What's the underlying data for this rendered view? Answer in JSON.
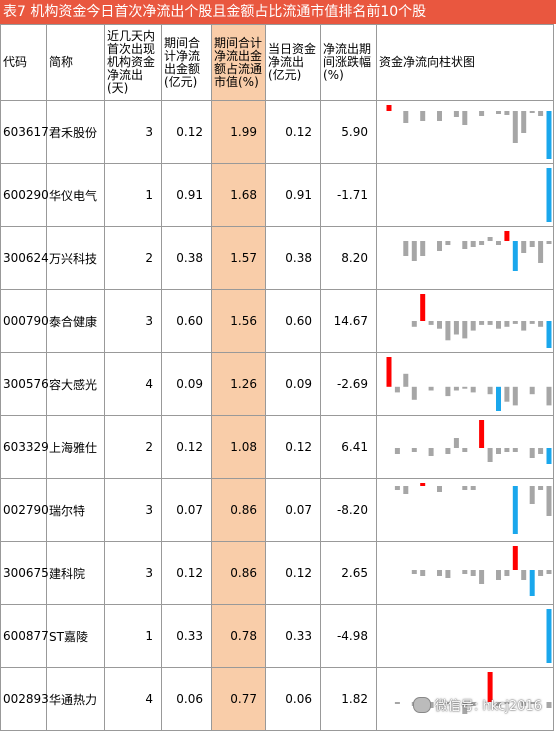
{
  "title": "表7 机构资金今日首次净流出个股且金额占比流通市值排名前10个股",
  "headers": {
    "code": "代码",
    "name": "简称",
    "days": "近几天内首次出现机构资金净流出(天)",
    "period_outflow": "期间合计净流出金额(亿元)",
    "period_ratio": "期间合计净流出金额占流通市值(%)",
    "day_outflow": "当日资金净流出(亿元)",
    "change": "净流出期间涨跌幅(%)",
    "chart": "资金净流向柱状图"
  },
  "colors": {
    "title_bg": "#e9573f",
    "highlight": "#f9cda9",
    "bar_red": "#ff0000",
    "bar_blue": "#1aa7ec",
    "bar_gray": "#a6a6a6"
  },
  "rows": [
    {
      "code": "603617",
      "name": "君禾股份",
      "days": "3",
      "period_outflow": "0.12",
      "period_ratio": "1.99",
      "day_outflow": "0.12",
      "change": "5.90",
      "bars": [
        6,
        0,
        -12,
        0,
        -10,
        0,
        -10,
        0,
        -6,
        -14,
        0,
        -5,
        0,
        -3,
        -4,
        -32,
        -22,
        -2,
        -5,
        -48
      ]
    },
    {
      "code": "600290",
      "name": "华仪电气",
      "days": "1",
      "period_outflow": "0.91",
      "period_ratio": "1.68",
      "day_outflow": "0.91",
      "change": "-1.71",
      "bars": [
        0,
        0,
        0,
        0,
        0,
        0,
        0,
        0,
        0,
        0,
        0,
        0,
        0,
        0,
        0,
        0,
        0,
        0,
        0,
        -55
      ]
    },
    {
      "code": "300624",
      "name": "万兴科技",
      "days": "2",
      "period_outflow": "0.38",
      "period_ratio": "1.57",
      "day_outflow": "0.38",
      "change": "8.20",
      "bars": [
        0,
        0,
        -15,
        -20,
        -15,
        0,
        -10,
        -4,
        0,
        -8,
        -6,
        -4,
        4,
        -4,
        10,
        -30,
        -12,
        -6,
        -22,
        -3
      ]
    },
    {
      "code": "000790",
      "name": "泰合健康",
      "days": "3",
      "period_outflow": "0.60",
      "period_ratio": "1.56",
      "day_outflow": "0.60",
      "change": "14.67",
      "bars": [
        0,
        0,
        0,
        -6,
        28,
        -4,
        -8,
        -20,
        -14,
        -18,
        -10,
        -4,
        -4,
        -8,
        -6,
        -3,
        -10,
        -3,
        -6,
        -28
      ]
    },
    {
      "code": "300576",
      "name": "容大感光",
      "days": "4",
      "period_outflow": "0.09",
      "period_ratio": "1.26",
      "day_outflow": "0.09",
      "change": "-2.69",
      "bars": [
        32,
        -6,
        14,
        -14,
        0,
        -4,
        0,
        -10,
        -4,
        -2,
        -6,
        0,
        -8,
        -26,
        -16,
        -20,
        0,
        -8,
        0,
        -20
      ]
    },
    {
      "code": "603329",
      "name": "上海雅仕",
      "days": "2",
      "period_outflow": "0.12",
      "period_ratio": "1.08",
      "day_outflow": "0.12",
      "change": "6.41",
      "bars": [
        0,
        -6,
        0,
        -4,
        0,
        -8,
        0,
        -6,
        10,
        -4,
        0,
        28,
        -14,
        -6,
        -4,
        -4,
        0,
        -10,
        -6,
        -16
      ]
    },
    {
      "code": "002790",
      "name": "瑞尔特",
      "days": "3",
      "period_outflow": "0.07",
      "period_ratio": "0.86",
      "day_outflow": "0.07",
      "change": "-8.20",
      "bars": [
        0,
        -4,
        -8,
        0,
        3,
        0,
        -6,
        0,
        0,
        -4,
        -4,
        0,
        0,
        0,
        0,
        -48,
        0,
        -18,
        -4,
        -30
      ]
    },
    {
      "code": "300675",
      "name": "建科院",
      "days": "3",
      "period_outflow": "0.12",
      "period_ratio": "0.86",
      "day_outflow": "0.12",
      "change": "2.65",
      "bars": [
        0,
        0,
        0,
        -4,
        -6,
        0,
        -6,
        -8,
        0,
        -4,
        -6,
        -14,
        0,
        -10,
        -6,
        24,
        -10,
        -26,
        -6,
        -4
      ]
    },
    {
      "code": "600877",
      "name": "ST嘉陵",
      "days": "1",
      "period_outflow": "0.33",
      "period_ratio": "0.78",
      "day_outflow": "0.33",
      "change": "-4.98",
      "bars": [
        0,
        0,
        0,
        0,
        0,
        0,
        0,
        0,
        0,
        0,
        0,
        0,
        0,
        0,
        0,
        0,
        0,
        0,
        0,
        -55
      ]
    },
    {
      "code": "002893",
      "name": "华通热力",
      "days": "4",
      "period_outflow": "0.06",
      "period_ratio": "0.77",
      "day_outflow": "0.06",
      "change": "1.82",
      "bars": [
        0,
        -2,
        0,
        -4,
        0,
        -6,
        0,
        -2,
        0,
        -12,
        -4,
        0,
        30,
        -4,
        -2,
        0,
        -4,
        -2,
        0,
        -6
      ]
    }
  ],
  "watermark": "微信号: hkcj2016"
}
